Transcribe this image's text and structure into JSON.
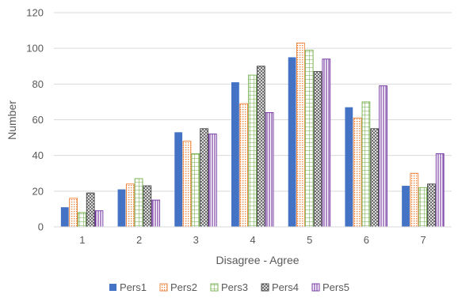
{
  "chart_data": {
    "type": "bar",
    "title": "",
    "xlabel": "Disagree - Agree",
    "ylabel": "Number",
    "categories": [
      "1",
      "2",
      "3",
      "4",
      "5",
      "6",
      "7"
    ],
    "ylim": [
      0,
      120
    ],
    "yticks": [
      "0",
      "20",
      "40",
      "60",
      "80",
      "100",
      "120"
    ],
    "grid": true,
    "legend_position": "bottom",
    "series": [
      {
        "name": "Pers1",
        "values": [
          11,
          21,
          53,
          81,
          95,
          67,
          23
        ],
        "color": "#4472C4",
        "pattern": "solid"
      },
      {
        "name": "Pers2",
        "values": [
          16,
          24,
          48,
          69,
          103,
          61,
          30
        ],
        "color": "#ED7D31",
        "pattern": "dots"
      },
      {
        "name": "Pers3",
        "values": [
          8,
          27,
          41,
          85,
          99,
          70,
          22
        ],
        "color": "#70AD47",
        "pattern": "grid"
      },
      {
        "name": "Pers4",
        "values": [
          19,
          23,
          55,
          90,
          87,
          55,
          24
        ],
        "color": "#404040",
        "pattern": "crosshatch"
      },
      {
        "name": "Pers5",
        "values": [
          9,
          15,
          52,
          64,
          94,
          79,
          41
        ],
        "color": "#7030A0",
        "pattern": "vlines"
      }
    ]
  }
}
